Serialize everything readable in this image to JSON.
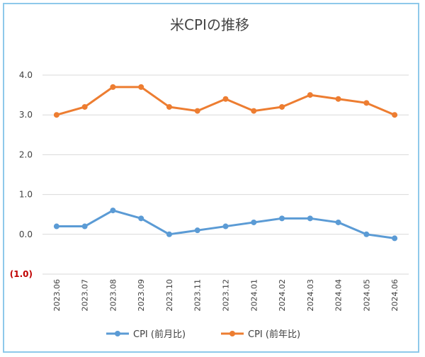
{
  "chart_data": {
    "type": "line",
    "title": "米CPIの推移",
    "categories": [
      "2023.06",
      "2023.07",
      "2023.08",
      "2023.09",
      "2023.10",
      "2023.11",
      "2023.12",
      "2024.01",
      "2024.02",
      "2024.03",
      "2024.04",
      "2024.05",
      "2024.06"
    ],
    "yticks": [
      "4.0",
      "3.0",
      "2.0",
      "1.0",
      "0.0",
      "(1.0)"
    ],
    "ylim": [
      -1,
      4
    ],
    "grid": true,
    "legend_position": "bottom",
    "series": [
      {
        "name": "CPI (前月比)",
        "color": "#5b9bd5",
        "values": [
          0.2,
          0.2,
          0.6,
          0.4,
          0.0,
          0.1,
          0.2,
          0.3,
          0.4,
          0.4,
          0.3,
          0.0,
          -0.1
        ]
      },
      {
        "name": "CPI (前年比)",
        "color": "#ed7d31",
        "values": [
          3.0,
          3.2,
          3.7,
          3.7,
          3.2,
          3.1,
          3.4,
          3.1,
          3.2,
          3.5,
          3.4,
          3.3,
          3.0
        ]
      }
    ]
  }
}
